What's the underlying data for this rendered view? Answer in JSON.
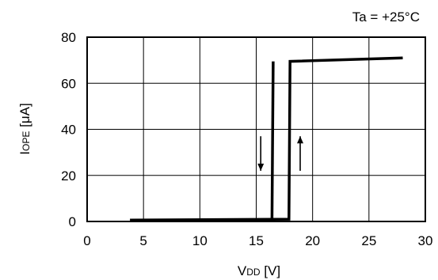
{
  "chart_data": {
    "type": "line",
    "condition": "Ta = +25°C",
    "xlabel": {
      "main": "V",
      "sub": "DD",
      "unit": " [V]"
    },
    "ylabel": {
      "main": "I",
      "sub": "OPE",
      "unit": "  [μA]"
    },
    "xlim": [
      0,
      30
    ],
    "ylim": [
      0,
      80
    ],
    "x_ticks": [
      0,
      5,
      10,
      15,
      20,
      25,
      30
    ],
    "y_ticks": [
      0,
      20,
      40,
      60,
      80
    ],
    "grid": true,
    "series": [
      {
        "points": [
          [
            3.8,
            0.6
          ],
          [
            17.9,
            1.0
          ],
          [
            18.0,
            69.5
          ],
          [
            28.0,
            71.0
          ]
        ]
      },
      {
        "points": [
          [
            16.5,
            69.5
          ],
          [
            16.4,
            1.0
          ]
        ]
      }
    ],
    "arrows": [
      {
        "direction": "down",
        "x": 15.4,
        "y_from": 37,
        "y_to": 22
      },
      {
        "direction": "up",
        "x": 18.9,
        "y_from": 22,
        "y_to": 37
      }
    ],
    "colors": {
      "line": "#000000",
      "grid": "#000000",
      "background": "#ffffff"
    }
  }
}
